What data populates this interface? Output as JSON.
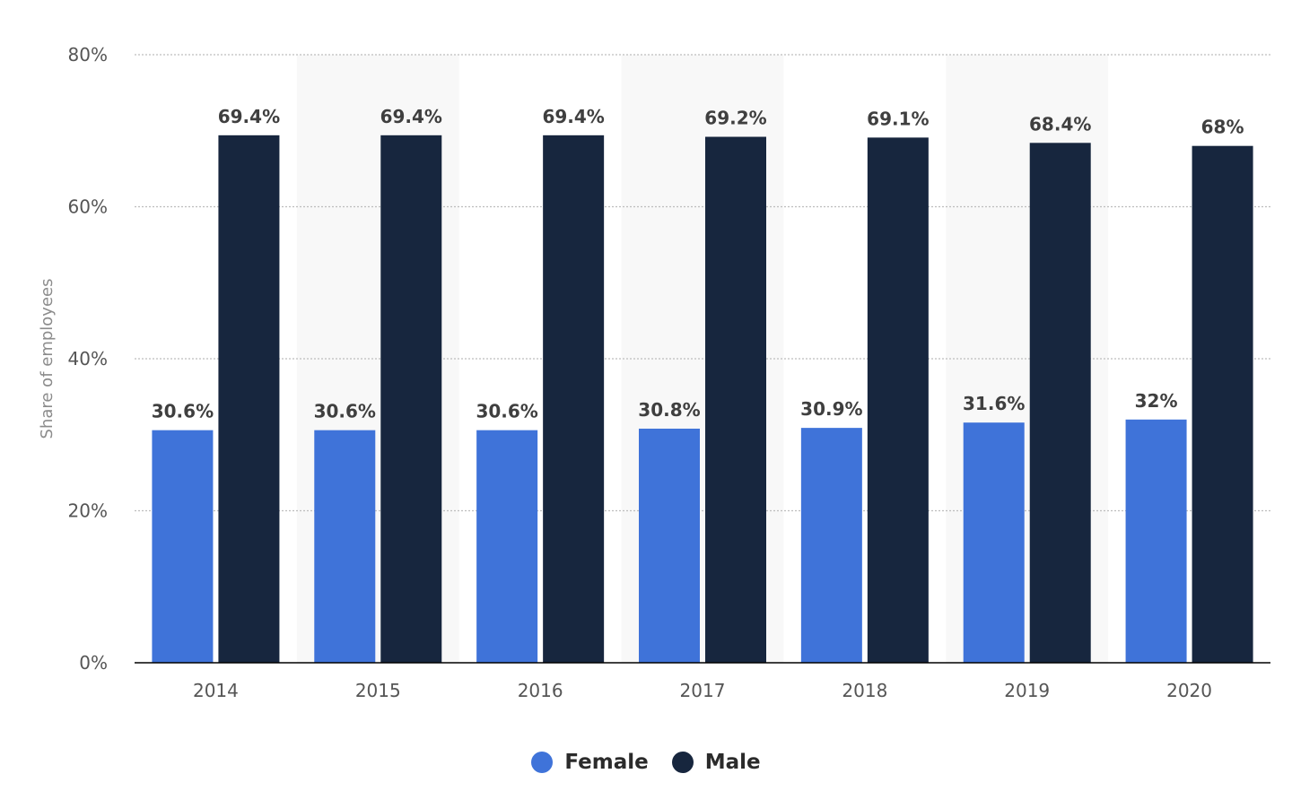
{
  "chart_data": {
    "type": "bar",
    "categories": [
      "2014",
      "2015",
      "2016",
      "2017",
      "2018",
      "2019",
      "2020"
    ],
    "series": [
      {
        "name": "Female",
        "color": "#3f73d9",
        "values": [
          30.6,
          30.6,
          30.6,
          30.8,
          30.9,
          31.6,
          32
        ],
        "labels": [
          "30.6%",
          "30.6%",
          "30.6%",
          "30.8%",
          "30.9%",
          "31.6%",
          "32%"
        ]
      },
      {
        "name": "Male",
        "color": "#17263e",
        "values": [
          69.4,
          69.4,
          69.4,
          69.2,
          69.1,
          68.4,
          68
        ],
        "labels": [
          "69.4%",
          "69.4%",
          "69.4%",
          "69.2%",
          "69.1%",
          "68.4%",
          "68%"
        ]
      }
    ],
    "ylabel": "Share of employees",
    "xlabel": "",
    "ylim": [
      0,
      80
    ],
    "yticks": [
      0,
      20,
      40,
      60,
      80
    ],
    "ytick_labels": [
      "0%",
      "20%",
      "40%",
      "60%",
      "80%"
    ],
    "grid": true,
    "legend_position": "bottom-center",
    "band_color": "#f8f8f8",
    "grid_color": "#bdbdbd",
    "axis_color": "#000000"
  }
}
